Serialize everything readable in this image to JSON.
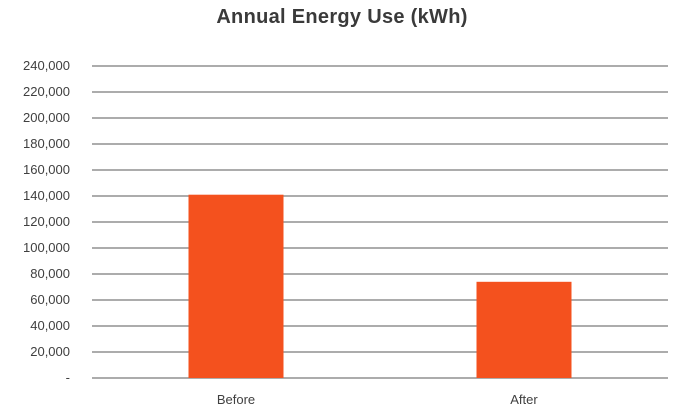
{
  "chart_data": {
    "type": "bar",
    "title": "Annual Energy Use (kWh)",
    "categories": [
      "Before",
      "After"
    ],
    "values": [
      141000,
      74000
    ],
    "xlabel": "",
    "ylabel": "",
    "ylim": [
      0,
      240000
    ],
    "y_ticks": [
      0,
      20000,
      40000,
      60000,
      80000,
      100000,
      120000,
      140000,
      160000,
      180000,
      200000,
      220000,
      240000
    ],
    "y_tick_labels": [
      "-",
      "20,000",
      "40,000",
      "60,000",
      "80,000",
      "100,000",
      "120,000",
      "140,000",
      "160,000",
      "180,000",
      "200,000",
      "220,000",
      "240,000"
    ],
    "grid": true,
    "legend": "none",
    "bar_color": "#f4511e",
    "grid_color": "#5a5a5a"
  }
}
